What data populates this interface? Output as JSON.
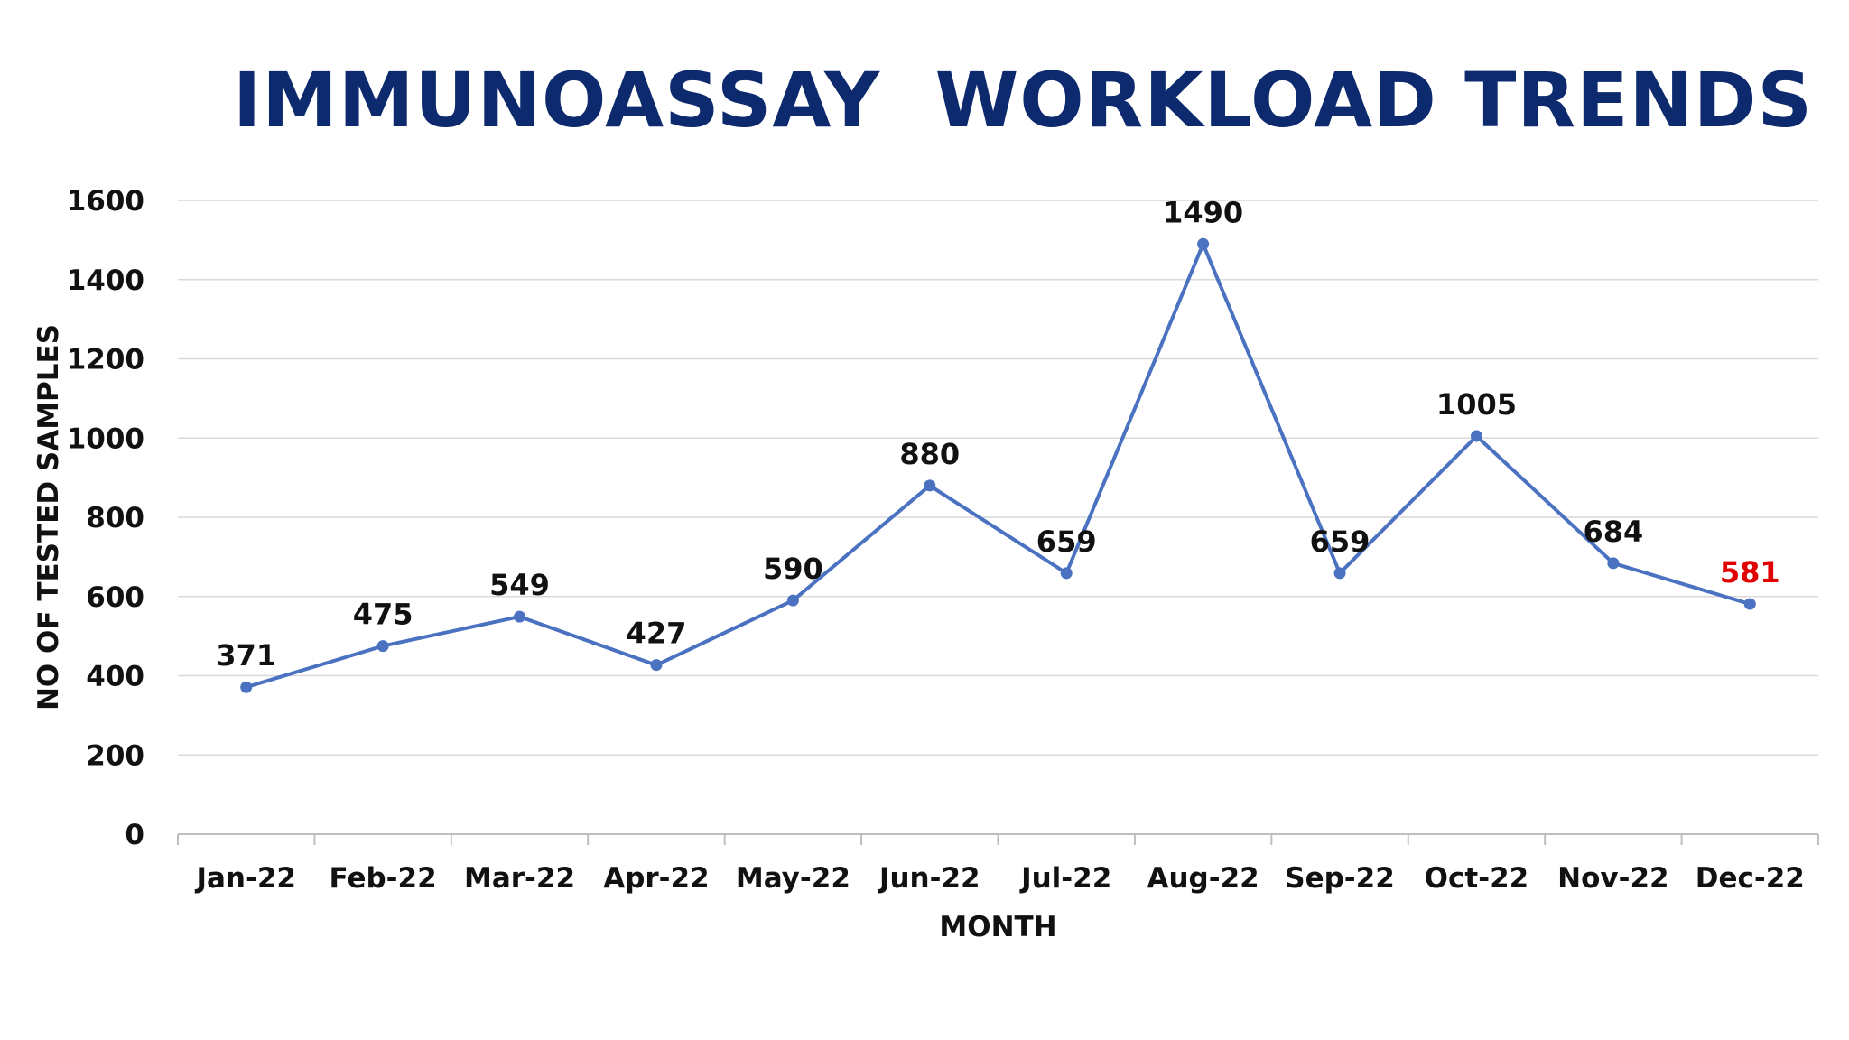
{
  "chart_data": {
    "type": "line",
    "title": "IMMUNOASSAY  WORKLOAD TRENDS",
    "xlabel": "MONTH",
    "ylabel": "NO OF TESTED SAMPLES",
    "categories": [
      "Jan-22",
      "Feb-22",
      "Mar-22",
      "Apr-22",
      "May-22",
      "Jun-22",
      "Jul-22",
      "Aug-22",
      "Sep-22",
      "Oct-22",
      "Nov-22",
      "Dec-22"
    ],
    "series": [
      {
        "values": [
          371,
          475,
          549,
          427,
          590,
          880,
          659,
          1490,
          659,
          1005,
          684,
          581
        ],
        "color": "#4a72c0"
      }
    ],
    "data_labels": [
      "371",
      "475",
      "549",
      "427",
      "590",
      "880",
      "659",
      "1490",
      "659",
      "1005",
      "684",
      "581"
    ],
    "highlighted_label": {
      "index": 11,
      "color": "#e00000"
    },
    "ylim": [
      0,
      1600
    ],
    "yticks": [
      "0",
      "200",
      "400",
      "600",
      "800",
      "1000",
      "1200",
      "1400",
      "1600"
    ],
    "grid": true,
    "legend": "none",
    "colors": {
      "title": "#0d2a6e",
      "line": "#4a72c0",
      "grid": "#d9d9d9",
      "axis": "#bfbfbf",
      "text": "#111111"
    }
  }
}
